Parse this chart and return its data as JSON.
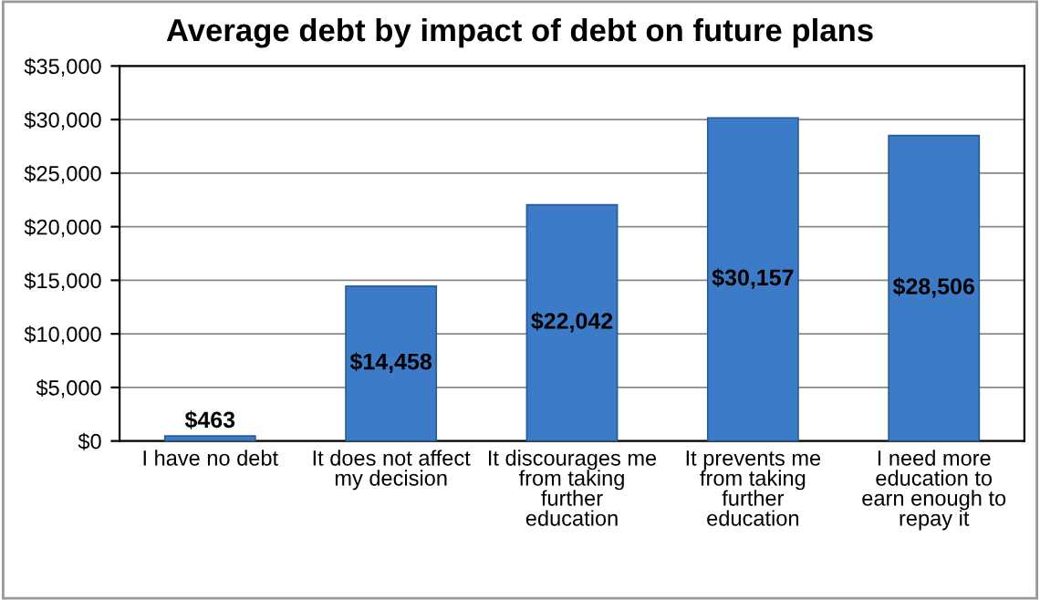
{
  "chart_data": {
    "type": "bar",
    "title": "Average debt by impact of debt on future plans",
    "categories": [
      "I have no debt",
      "It does not affect\nmy decision",
      "It discourages me\nfrom taking\nfurther\neducation",
      "It prevents me\nfrom taking\nfurther\neducation",
      "I need more\neducation to\nearn enough to\nrepay it"
    ],
    "values": [
      463,
      14458,
      22042,
      30157,
      28506
    ],
    "value_labels": [
      "$463",
      "$14,458",
      "$22,042",
      "$30,157",
      "$28,506"
    ],
    "color": "#3c7bc8",
    "ylim": [
      0,
      35000
    ],
    "yticks": [
      {
        "value": 0,
        "label": "$0"
      },
      {
        "value": 5000,
        "label": "$5,000"
      },
      {
        "value": 10000,
        "label": "$10,000"
      },
      {
        "value": 15000,
        "label": "$15,000"
      },
      {
        "value": 20000,
        "label": "$20,000"
      },
      {
        "value": 25000,
        "label": "$25,000"
      },
      {
        "value": 30000,
        "label": "$30,000"
      },
      {
        "value": 35000,
        "label": "$35,000"
      }
    ],
    "grid": "y"
  }
}
